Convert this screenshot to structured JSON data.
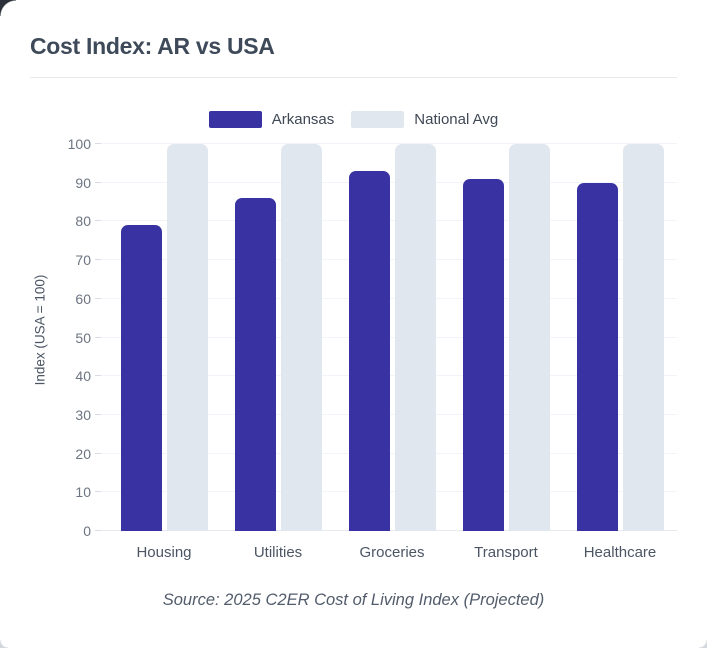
{
  "header": {
    "title": "Cost Index: AR vs USA"
  },
  "chart_data": {
    "type": "bar",
    "title": "Cost Index: AR vs USA",
    "categories": [
      "Housing",
      "Utilities",
      "Groceries",
      "Transport",
      "Healthcare"
    ],
    "series": [
      {
        "name": "Arkansas",
        "color": "#3832A2",
        "values": [
          79,
          86,
          93,
          91,
          90
        ]
      },
      {
        "name": "National Avg",
        "color": "#E1E7EF",
        "values": [
          100,
          100,
          100,
          100,
          100
        ]
      }
    ],
    "xlabel": "",
    "ylabel": "Index (USA = 100)",
    "ylim": [
      0,
      100
    ],
    "yticks": [
      0,
      10,
      20,
      30,
      40,
      50,
      60,
      70,
      80,
      90,
      100
    ],
    "grid": true,
    "legend_position": "top"
  },
  "source": {
    "text": "Source: 2025 C2ER Cost of Living Index (Projected)"
  },
  "colors": {
    "arkansas_bar": "#3832A2",
    "national_avg_bar": "#E1E7EF",
    "gridline": "#F1F4F8",
    "zero_line": "#E6E9EE",
    "title_text": "#3E4A59",
    "tick_text": "#6B7480",
    "corner_background": "#2C3039"
  }
}
